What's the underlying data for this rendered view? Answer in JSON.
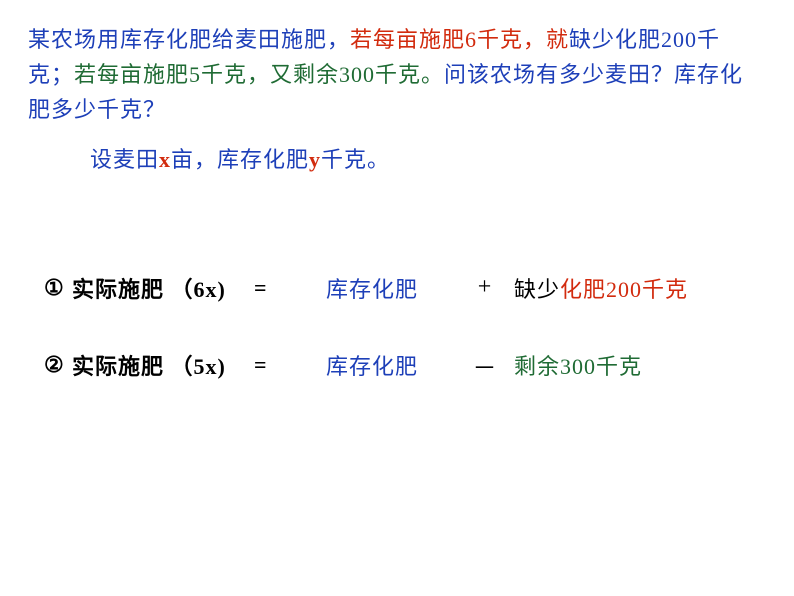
{
  "colors": {
    "blue": "#1d3fb8",
    "red": "#d22b0e",
    "green": "#1f6b34",
    "black": "#000000"
  },
  "problem": {
    "p1a": "某农场用库存化肥给麦田施肥，",
    "p1b": "若每亩施肥6千克，就",
    "p1c": "缺少化肥200千克",
    "p1d": "；",
    "p1e": "若每亩施肥5千克，又剩余300千克。",
    "p1f": "问该农场有多少麦田？库存化肥多少千克？"
  },
  "setup": {
    "s1": "设麦田",
    "s2": "x",
    "s3": "亩，库存化肥",
    "s4": "y",
    "s5": "千克。"
  },
  "eq1": {
    "num": "①",
    "left_a": "实际施肥 （",
    "left_b": "6x)",
    "eq": "=",
    "stock": "库存化肥",
    "op": "+",
    "right_a": "缺少",
    "right_b": "化肥200千克"
  },
  "eq2": {
    "num": "②",
    "left_a": "实际施肥 （",
    "left_b": "5x)",
    "eq": "=",
    "stock": "库存化肥",
    "op": "－",
    "right": "剩余300千克"
  }
}
